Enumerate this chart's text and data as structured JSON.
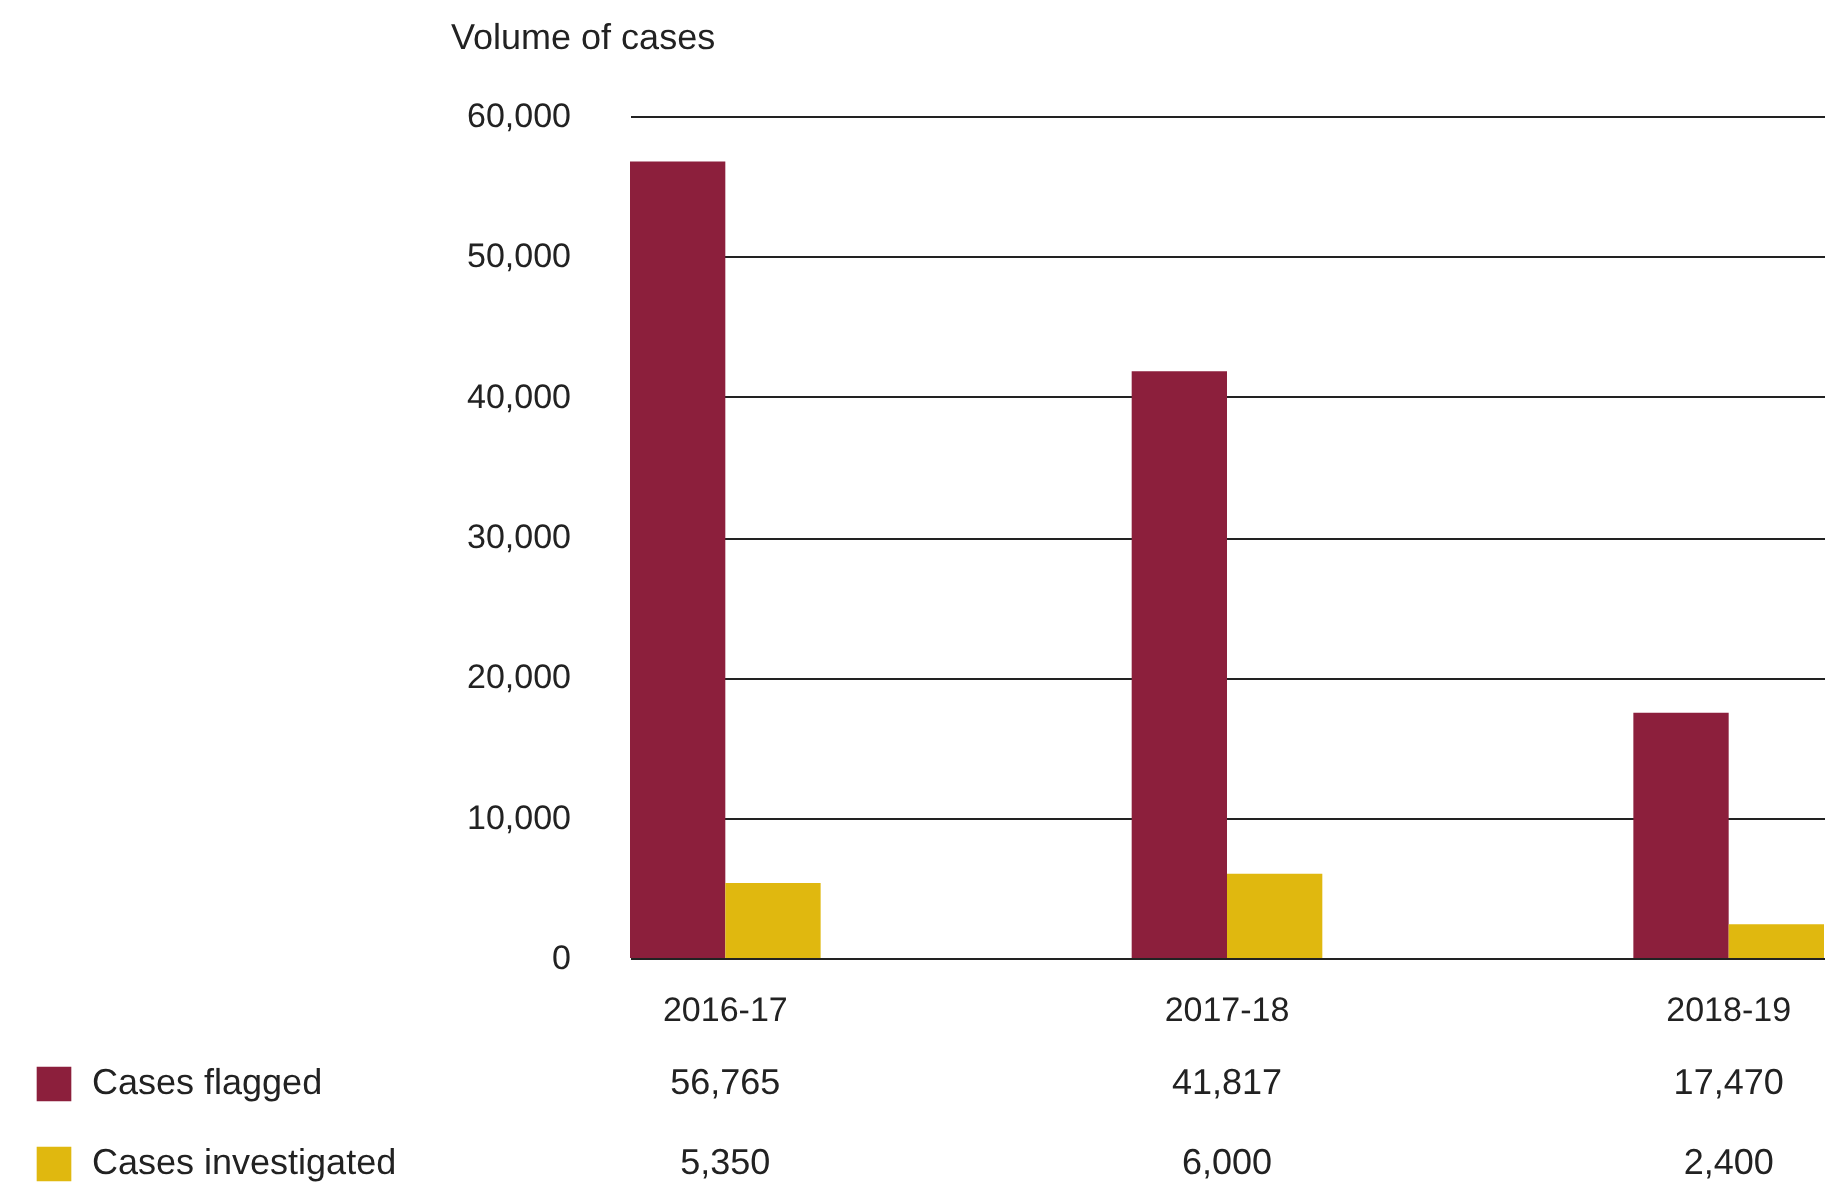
{
  "chart_data": {
    "type": "bar",
    "ylabel": "Volume of cases",
    "categories": [
      "2016-17",
      "2017-18",
      "2018-19"
    ],
    "series": [
      {
        "name": "Cases flagged",
        "color": "#8c1f3c",
        "values": [
          56765,
          41817,
          17470
        ],
        "value_labels": [
          "56,765",
          "41,817",
          "17,470"
        ]
      },
      {
        "name": "Cases investigated",
        "color": "#e0b80f",
        "values": [
          5350,
          6000,
          2400
        ],
        "value_labels": [
          "5,350",
          "6,000",
          "2,400"
        ]
      }
    ],
    "ylim": [
      0,
      60000
    ],
    "yticks": [
      0,
      {
        "value": 10000,
        "label": "10,000"
      },
      {
        "value": 20000,
        "label": "20,000"
      },
      {
        "value": 30000,
        "label": "30,000"
      },
      {
        "value": 40000,
        "label": "40,000"
      },
      {
        "value": 50000,
        "label": "50,000"
      },
      {
        "value": 60000,
        "label": "60,000"
      }
    ],
    "grid": "y",
    "legend": "bottom left"
  }
}
